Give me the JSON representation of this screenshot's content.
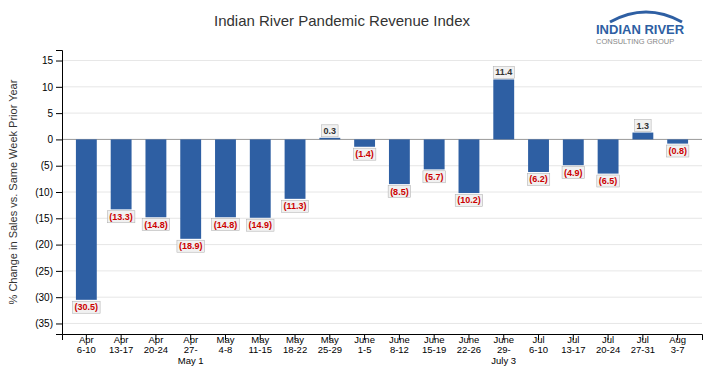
{
  "chart_data": {
    "type": "bar",
    "title": "Indian River Pandemic Revenue Index",
    "ylabel": "% Change in Sales vs. Same Week Prior Year",
    "categories": [
      "Apr\n6-10",
      "Apr\n13-17",
      "Apr\n20-24",
      "Apr\n27-\nMay 1",
      "May\n4-8",
      "May\n11-15",
      "May\n18-22",
      "May\n25-29",
      "June\n1-5",
      "June\n8-12",
      "June\n15-19",
      "June\n22-26",
      "June\n29-\nJuly 3",
      "Jul\n6-10",
      "Jul\n13-17",
      "Jul\n20-24",
      "Jul\n27-31",
      "Aug\n3-7"
    ],
    "values": [
      -30.5,
      -13.3,
      -14.8,
      -18.9,
      -14.8,
      -14.9,
      -11.3,
      0.3,
      -1.4,
      -8.5,
      -5.7,
      -10.2,
      11.4,
      -6.2,
      -4.9,
      -6.5,
      1.3,
      -0.8
    ],
    "value_labels": [
      "(30.5)",
      "(13.3)",
      "(14.8)",
      "(18.9)",
      "(14.8)",
      "(14.9)",
      "(11.3)",
      "0.3",
      "(1.4)",
      "(8.5)",
      "(5.7)",
      "(10.2)",
      "11.4",
      "(6.2)",
      "(4.9)",
      "(6.5)",
      "1.3",
      "(0.8)"
    ],
    "color": "#2E5FA3",
    "ylim": [
      -37,
      17
    ],
    "yticks": [
      {
        "value": -35,
        "label": "(35)"
      },
      {
        "value": -30,
        "label": "(30)"
      },
      {
        "value": -25,
        "label": "(25)"
      },
      {
        "value": -20,
        "label": "(20)"
      },
      {
        "value": -15,
        "label": "(15)"
      },
      {
        "value": -10,
        "label": "(10)"
      },
      {
        "value": -5,
        "label": "(5)"
      },
      0,
      5,
      10,
      15
    ],
    "grid": true,
    "data_labels": true,
    "annotations": [
      "INDIAN RIVER",
      "CONSULTING GROUP"
    ]
  }
}
